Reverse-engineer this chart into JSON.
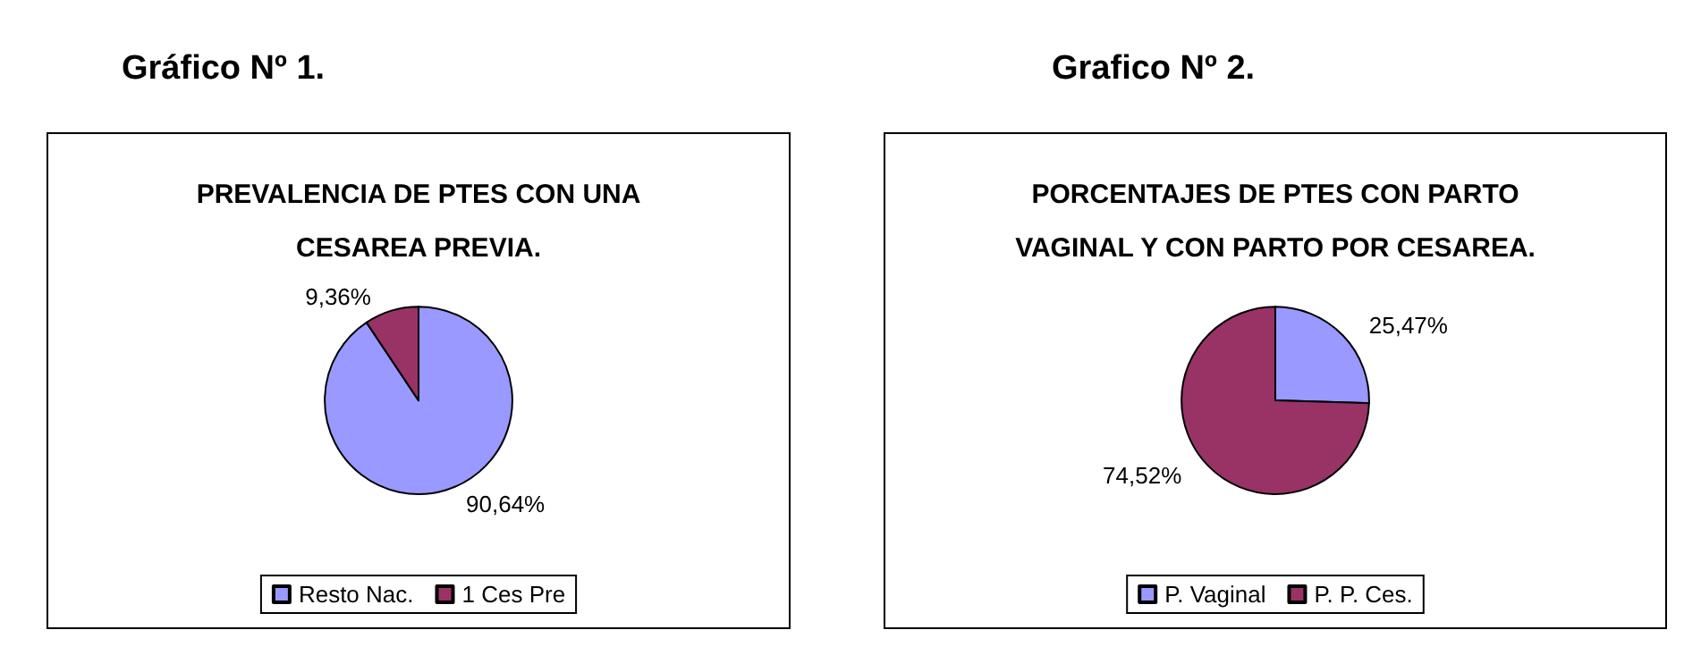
{
  "chart_data": [
    {
      "type": "pie",
      "title": "Gráfico Nº 1.",
      "subtitle": "PREVALENCIA DE PTES CON UNA\nCESAREA PREVIA.",
      "categories": [
        "Resto Nac.",
        "1 Ces Pre"
      ],
      "values": [
        90.64,
        9.36
      ],
      "value_labels": [
        "90,64%",
        "9,36%"
      ],
      "colors": [
        "#9999ff",
        "#993366"
      ],
      "legend": "bottom"
    },
    {
      "type": "pie",
      "title": "Grafico Nº 2.",
      "subtitle": "PORCENTAJES DE PTES CON PARTO\nVAGINAL Y CON PARTO POR CESAREA.",
      "categories": [
        "P. Vaginal",
        "P. P. Ces."
      ],
      "values": [
        25.47,
        74.52
      ],
      "value_labels": [
        "25,47%",
        "74,52%"
      ],
      "colors": [
        "#9999ff",
        "#993366"
      ],
      "legend": "bottom"
    }
  ]
}
